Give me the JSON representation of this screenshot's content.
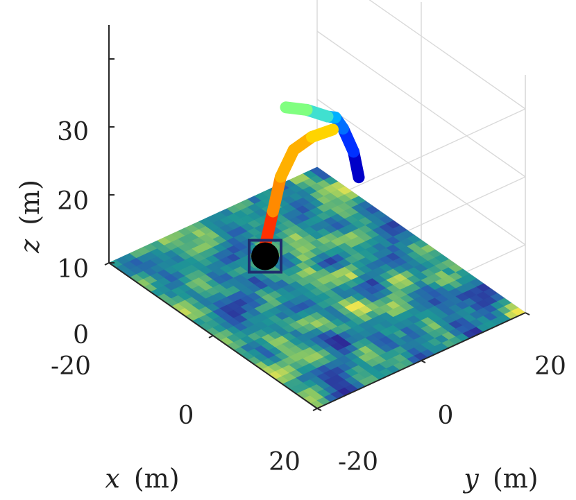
{
  "chart_data": {
    "type": "3d-surface-with-trajectory",
    "xlabel_var": "x",
    "xlabel_unit": "(m)",
    "ylabel_var": "y",
    "ylabel_unit": "(m)",
    "zlabel_var": "z",
    "zlabel_unit": "(m)",
    "xlim": [
      -20,
      20
    ],
    "ylim": [
      -20,
      20
    ],
    "zlim": [
      0,
      35
    ],
    "x_ticks": [
      "-20",
      "0",
      "20"
    ],
    "y_ticks": [
      "-20",
      "0",
      "20"
    ],
    "z_ticks": [
      "0",
      "10",
      "20",
      "30"
    ],
    "grid": true,
    "surface": {
      "z_level": 0,
      "colormap": "parula-like (dark blue → teal → green → yellow)",
      "resolution": 30
    },
    "trajectory_1": {
      "description": "orange-red arc",
      "colors": [
        "#ff3000",
        "#ff8a00",
        "#ffb000",
        "#ffd400"
      ],
      "points": [
        {
          "x": -3,
          "y": -7,
          "z": 7
        },
        {
          "x": -2.5,
          "y": -6,
          "z": 12
        },
        {
          "x": -2,
          "y": -5,
          "z": 17
        },
        {
          "x": -1,
          "y": -3.5,
          "z": 21
        },
        {
          "x": 0.5,
          "y": -1.5,
          "z": 23
        },
        {
          "x": 2,
          "y": 1,
          "z": 24
        }
      ]
    },
    "trajectory_2": {
      "description": "blue arc",
      "colors": [
        "#0000c8",
        "#0030ff",
        "#0070ff",
        "#00b0ff",
        "#40e0d0",
        "#80ff80"
      ],
      "points": [
        {
          "x": -5,
          "y": 13,
          "z": 9
        },
        {
          "x": -4,
          "y": 11,
          "z": 14
        },
        {
          "x": -3,
          "y": 8,
          "z": 19
        },
        {
          "x": -1.5,
          "y": 5,
          "z": 22.5
        },
        {
          "x": 0,
          "y": 2,
          "z": 24.5
        },
        {
          "x": -1,
          "y": -1,
          "z": 26
        },
        {
          "x": -3,
          "y": -3,
          "z": 26
        }
      ]
    },
    "markers": [
      {
        "type": "circle",
        "color": "#000000",
        "x": -3,
        "y": -7,
        "z": 5.5
      },
      {
        "type": "square",
        "color": "#1f2d6e",
        "x": -3,
        "y": -7,
        "z": 5.5
      }
    ]
  }
}
